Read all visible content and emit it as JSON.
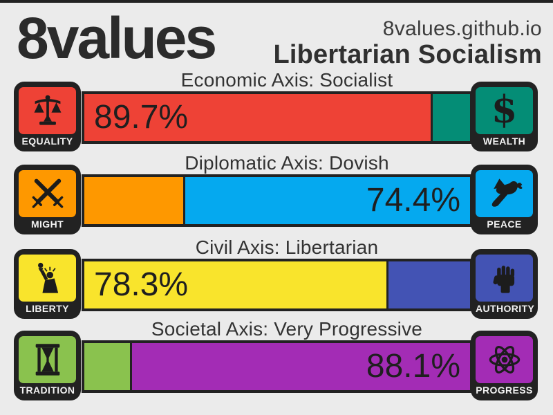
{
  "page": {
    "background": "#ebebeb",
    "frame_color": "#222222"
  },
  "header": {
    "logo": "8values",
    "site": "8values.github.io",
    "result": "Libertarian Socialism"
  },
  "axes": [
    {
      "id": "economic",
      "label": "Economic Axis: Socialist",
      "value_text": "89.7%",
      "value_side": "left",
      "pct": 89.7,
      "left": {
        "label": "EQUALITY",
        "icon": "balance-scale-icon",
        "color": "#ee4236"
      },
      "right": {
        "label": "WEALTH",
        "icon": "dollar-icon",
        "glyph": "$",
        "color": "#048d76"
      }
    },
    {
      "id": "diplomatic",
      "label": "Diplomatic Axis: Dovish",
      "value_text": "74.4%",
      "value_side": "right",
      "pct": 74.4,
      "left": {
        "label": "MIGHT",
        "icon": "crossed-swords-icon",
        "color": "#fe9800"
      },
      "right": {
        "label": "PEACE",
        "icon": "dove-icon",
        "color": "#05a9ef"
      }
    },
    {
      "id": "civil",
      "label": "Civil Axis: Libertarian",
      "value_text": "78.3%",
      "value_side": "left",
      "pct": 78.3,
      "left": {
        "label": "LIBERTY",
        "icon": "statue-of-liberty-icon",
        "color": "#f9e42c"
      },
      "right": {
        "label": "AUTHORITY",
        "icon": "raised-fist-icon",
        "color": "#4353b4"
      }
    },
    {
      "id": "societal",
      "label": "Societal Axis: Very Progressive",
      "value_text": "88.1%",
      "value_side": "right",
      "pct": 88.1,
      "left": {
        "label": "TRADITION",
        "icon": "hourglass-icon",
        "color": "#8ac24e"
      },
      "right": {
        "label": "PROGRESS",
        "icon": "atom-icon",
        "color": "#a32cb5"
      }
    }
  ]
}
